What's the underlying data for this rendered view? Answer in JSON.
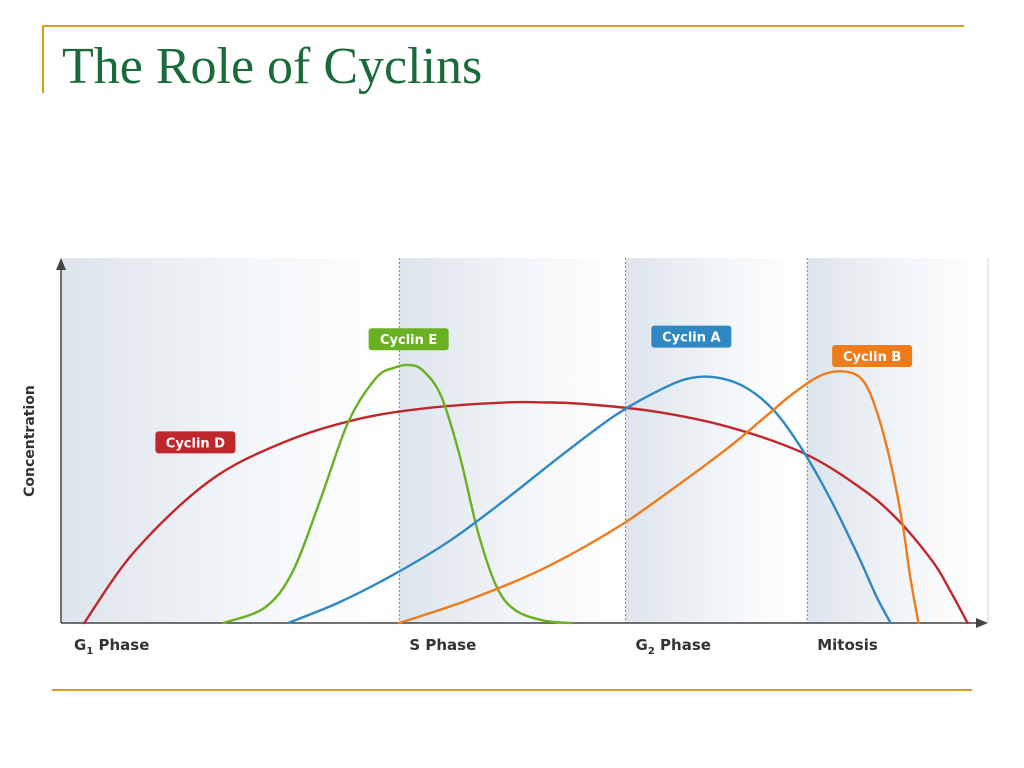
{
  "slide": {
    "title": "The Role of Cyclins",
    "accent_color": "#d4a017",
    "title_color": "#1a6b3a"
  },
  "chart_data": {
    "type": "line",
    "title": "",
    "ylabel": "Concentration",
    "xlabel": "",
    "x_range": [
      0,
      100
    ],
    "y_range": [
      0,
      100
    ],
    "phases": [
      {
        "name": "G",
        "sub": "1",
        "suffix": " Phase",
        "start": 0,
        "end": 36.5
      },
      {
        "name": "S Phase",
        "sub": "",
        "suffix": "",
        "start": 36.5,
        "end": 60.9
      },
      {
        "name": "G",
        "sub": "2",
        "suffix": " Phase",
        "start": 60.9,
        "end": 80.5
      },
      {
        "name": "Mitosis",
        "sub": "",
        "suffix": "",
        "start": 80.5,
        "end": 100
      }
    ],
    "series": [
      {
        "name": "Cyclin D",
        "color": "#c0272d",
        "x": [
          2.5,
          8,
          16,
          24,
          32,
          40,
          48,
          52,
          56,
          64,
          72,
          80,
          86,
          90,
          94,
          96,
          97.8
        ],
        "y": [
          0,
          28,
          55,
          70,
          79,
          83.5,
          85.5,
          85.5,
          85,
          82,
          76,
          66,
          53,
          41,
          24,
          12,
          0
        ]
      },
      {
        "name": "Cyclin E",
        "color": "#6ab023",
        "x": [
          17.5,
          22,
          25,
          28,
          31,
          34,
          36,
          37.5,
          39,
          41,
          43,
          45,
          47,
          49,
          52,
          55
        ],
        "y": [
          0,
          6,
          20,
          48,
          78,
          95,
          99,
          100,
          98,
          88,
          65,
          35,
          14,
          5,
          1,
          0
        ]
      },
      {
        "name": "Cyclin A",
        "color": "#2f87c4",
        "x": [
          24.5,
          30,
          36,
          42,
          48,
          54,
          60,
          65,
          68,
          71,
          74,
          77,
          80,
          83,
          86,
          88,
          89.5
        ],
        "y": [
          0,
          8,
          19,
          32,
          48,
          65,
          81,
          91,
          95,
          95,
          91,
          82,
          67,
          48,
          26,
          10,
          0
        ]
      },
      {
        "name": "Cyclin B",
        "color": "#ef7c1a",
        "x": [
          36.5,
          44,
          52,
          60,
          66,
          72,
          76,
          79,
          82,
          84.5,
          86.5,
          88,
          89.5,
          90.8,
          91.6,
          92.5
        ],
        "y": [
          0,
          9,
          21,
          37,
          52,
          68,
          80,
          89,
          96,
          97.5,
          94,
          82,
          62,
          38,
          18,
          0
        ]
      }
    ],
    "labels": [
      {
        "series": "Cyclin D",
        "x": 14.5,
        "y": 70
      },
      {
        "series": "Cyclin E",
        "x": 37.5,
        "y": 110
      },
      {
        "series": "Cyclin A",
        "x": 68,
        "y": 111
      },
      {
        "series": "Cyclin B",
        "x": 87.5,
        "y": 103.5
      }
    ],
    "grid": false,
    "legend": "inline"
  }
}
